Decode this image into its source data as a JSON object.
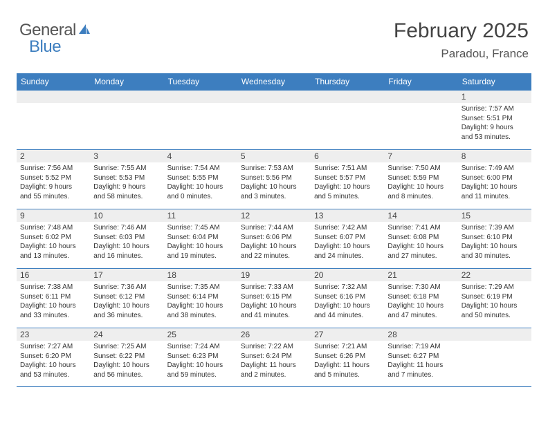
{
  "logo": {
    "word1": "General",
    "word2": "Blue",
    "icon_color": "#3d7ebf"
  },
  "title": "February 2025",
  "location": "Paradou, France",
  "colors": {
    "header_bg": "#3d7ebf",
    "header_text": "#ffffff",
    "daynum_bg": "#eeeeee",
    "border": "#3d7ebf",
    "text": "#333333"
  },
  "day_labels": [
    "Sunday",
    "Monday",
    "Tuesday",
    "Wednesday",
    "Thursday",
    "Friday",
    "Saturday"
  ],
  "weeks": [
    [
      {
        "num": "",
        "lines": [
          "",
          "",
          "",
          ""
        ]
      },
      {
        "num": "",
        "lines": [
          "",
          "",
          "",
          ""
        ]
      },
      {
        "num": "",
        "lines": [
          "",
          "",
          "",
          ""
        ]
      },
      {
        "num": "",
        "lines": [
          "",
          "",
          "",
          ""
        ]
      },
      {
        "num": "",
        "lines": [
          "",
          "",
          "",
          ""
        ]
      },
      {
        "num": "",
        "lines": [
          "",
          "",
          "",
          ""
        ]
      },
      {
        "num": "1",
        "lines": [
          "Sunrise: 7:57 AM",
          "Sunset: 5:51 PM",
          "Daylight: 9 hours",
          "and 53 minutes."
        ]
      }
    ],
    [
      {
        "num": "2",
        "lines": [
          "Sunrise: 7:56 AM",
          "Sunset: 5:52 PM",
          "Daylight: 9 hours",
          "and 55 minutes."
        ]
      },
      {
        "num": "3",
        "lines": [
          "Sunrise: 7:55 AM",
          "Sunset: 5:53 PM",
          "Daylight: 9 hours",
          "and 58 minutes."
        ]
      },
      {
        "num": "4",
        "lines": [
          "Sunrise: 7:54 AM",
          "Sunset: 5:55 PM",
          "Daylight: 10 hours",
          "and 0 minutes."
        ]
      },
      {
        "num": "5",
        "lines": [
          "Sunrise: 7:53 AM",
          "Sunset: 5:56 PM",
          "Daylight: 10 hours",
          "and 3 minutes."
        ]
      },
      {
        "num": "6",
        "lines": [
          "Sunrise: 7:51 AM",
          "Sunset: 5:57 PM",
          "Daylight: 10 hours",
          "and 5 minutes."
        ]
      },
      {
        "num": "7",
        "lines": [
          "Sunrise: 7:50 AM",
          "Sunset: 5:59 PM",
          "Daylight: 10 hours",
          "and 8 minutes."
        ]
      },
      {
        "num": "8",
        "lines": [
          "Sunrise: 7:49 AM",
          "Sunset: 6:00 PM",
          "Daylight: 10 hours",
          "and 11 minutes."
        ]
      }
    ],
    [
      {
        "num": "9",
        "lines": [
          "Sunrise: 7:48 AM",
          "Sunset: 6:02 PM",
          "Daylight: 10 hours",
          "and 13 minutes."
        ]
      },
      {
        "num": "10",
        "lines": [
          "Sunrise: 7:46 AM",
          "Sunset: 6:03 PM",
          "Daylight: 10 hours",
          "and 16 minutes."
        ]
      },
      {
        "num": "11",
        "lines": [
          "Sunrise: 7:45 AM",
          "Sunset: 6:04 PM",
          "Daylight: 10 hours",
          "and 19 minutes."
        ]
      },
      {
        "num": "12",
        "lines": [
          "Sunrise: 7:44 AM",
          "Sunset: 6:06 PM",
          "Daylight: 10 hours",
          "and 22 minutes."
        ]
      },
      {
        "num": "13",
        "lines": [
          "Sunrise: 7:42 AM",
          "Sunset: 6:07 PM",
          "Daylight: 10 hours",
          "and 24 minutes."
        ]
      },
      {
        "num": "14",
        "lines": [
          "Sunrise: 7:41 AM",
          "Sunset: 6:08 PM",
          "Daylight: 10 hours",
          "and 27 minutes."
        ]
      },
      {
        "num": "15",
        "lines": [
          "Sunrise: 7:39 AM",
          "Sunset: 6:10 PM",
          "Daylight: 10 hours",
          "and 30 minutes."
        ]
      }
    ],
    [
      {
        "num": "16",
        "lines": [
          "Sunrise: 7:38 AM",
          "Sunset: 6:11 PM",
          "Daylight: 10 hours",
          "and 33 minutes."
        ]
      },
      {
        "num": "17",
        "lines": [
          "Sunrise: 7:36 AM",
          "Sunset: 6:12 PM",
          "Daylight: 10 hours",
          "and 36 minutes."
        ]
      },
      {
        "num": "18",
        "lines": [
          "Sunrise: 7:35 AM",
          "Sunset: 6:14 PM",
          "Daylight: 10 hours",
          "and 38 minutes."
        ]
      },
      {
        "num": "19",
        "lines": [
          "Sunrise: 7:33 AM",
          "Sunset: 6:15 PM",
          "Daylight: 10 hours",
          "and 41 minutes."
        ]
      },
      {
        "num": "20",
        "lines": [
          "Sunrise: 7:32 AM",
          "Sunset: 6:16 PM",
          "Daylight: 10 hours",
          "and 44 minutes."
        ]
      },
      {
        "num": "21",
        "lines": [
          "Sunrise: 7:30 AM",
          "Sunset: 6:18 PM",
          "Daylight: 10 hours",
          "and 47 minutes."
        ]
      },
      {
        "num": "22",
        "lines": [
          "Sunrise: 7:29 AM",
          "Sunset: 6:19 PM",
          "Daylight: 10 hours",
          "and 50 minutes."
        ]
      }
    ],
    [
      {
        "num": "23",
        "lines": [
          "Sunrise: 7:27 AM",
          "Sunset: 6:20 PM",
          "Daylight: 10 hours",
          "and 53 minutes."
        ]
      },
      {
        "num": "24",
        "lines": [
          "Sunrise: 7:25 AM",
          "Sunset: 6:22 PM",
          "Daylight: 10 hours",
          "and 56 minutes."
        ]
      },
      {
        "num": "25",
        "lines": [
          "Sunrise: 7:24 AM",
          "Sunset: 6:23 PM",
          "Daylight: 10 hours",
          "and 59 minutes."
        ]
      },
      {
        "num": "26",
        "lines": [
          "Sunrise: 7:22 AM",
          "Sunset: 6:24 PM",
          "Daylight: 11 hours",
          "and 2 minutes."
        ]
      },
      {
        "num": "27",
        "lines": [
          "Sunrise: 7:21 AM",
          "Sunset: 6:26 PM",
          "Daylight: 11 hours",
          "and 5 minutes."
        ]
      },
      {
        "num": "28",
        "lines": [
          "Sunrise: 7:19 AM",
          "Sunset: 6:27 PM",
          "Daylight: 11 hours",
          "and 7 minutes."
        ]
      },
      {
        "num": "",
        "lines": [
          "",
          "",
          "",
          ""
        ]
      }
    ]
  ]
}
